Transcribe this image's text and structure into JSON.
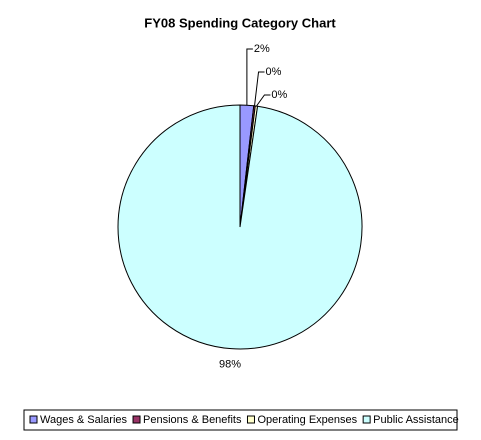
{
  "chart_data": {
    "type": "pie",
    "title": "FY08 Spending Category Chart",
    "categories": [
      "Wages & Salaries",
      "Pensions & Benefits",
      "Operating Expenses",
      "Public Assistance"
    ],
    "values": [
      1.8,
      0.2,
      0.3,
      97.7
    ],
    "value_labels": [
      "2%",
      "0%",
      "0%",
      "98%"
    ],
    "colors": [
      "#9999ff",
      "#993366",
      "#ffffcc",
      "#ccffff"
    ],
    "legend": "bottom"
  }
}
